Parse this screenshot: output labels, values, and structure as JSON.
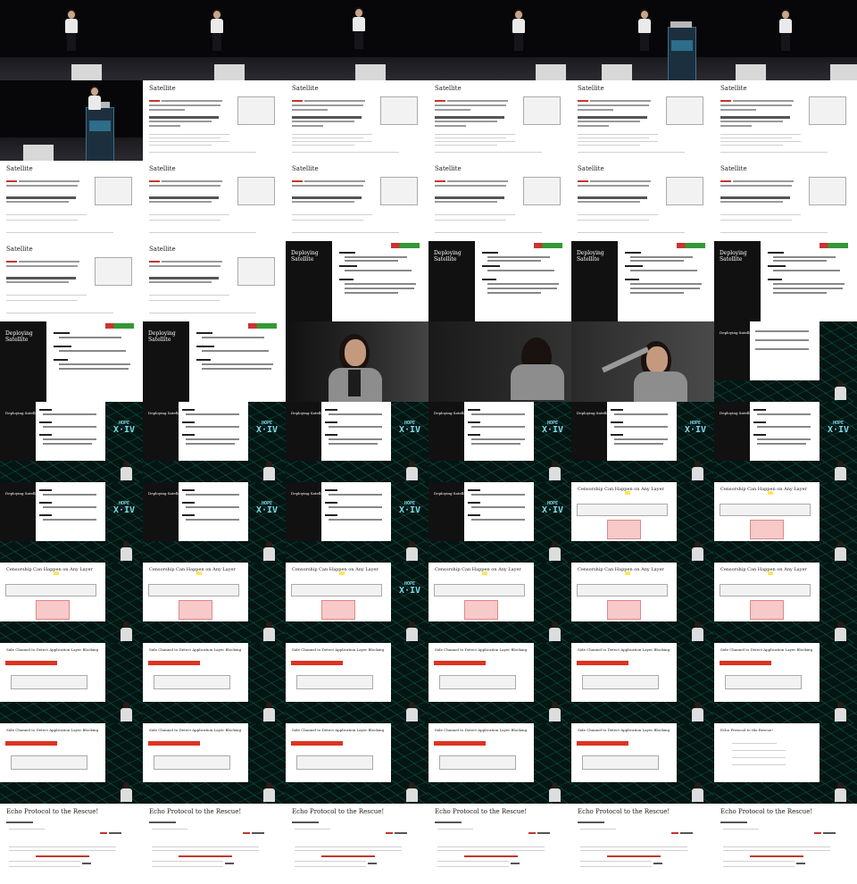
{
  "slides": {
    "satellite_title": "Satellite",
    "deploying_title": "Deploying Satellite",
    "censorship_title": "Censorship Can Happen on Any Layer",
    "side_channel_title": "Side Channel to Detect Application Layer Blocking",
    "echo_title": "Echo Protocol to the Rescue!"
  },
  "stage": {
    "podium_logo": "HOPE"
  },
  "pip": {
    "brand_line1": "HOPE",
    "brand_line2": "X·IV"
  }
}
